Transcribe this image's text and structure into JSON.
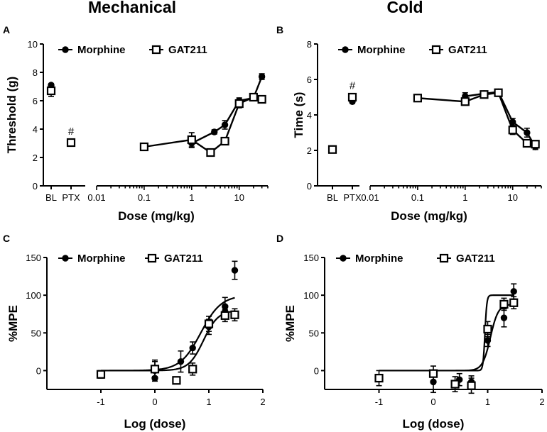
{
  "figure": {
    "col_titles": [
      "Mechanical",
      "Cold"
    ],
    "panel_letters": [
      "A",
      "B",
      "C",
      "D"
    ]
  },
  "chart_data": [
    {
      "panel": "A",
      "type": "line",
      "ylabel": "Threshold (g)",
      "xlabel": "Dose  (mg/kg)",
      "ylim": [
        0,
        10
      ],
      "yticks": [
        0,
        2,
        4,
        6,
        8,
        10
      ],
      "xscale": "log",
      "xlim": [
        0.01,
        40
      ],
      "xticks": [
        0.01,
        0.1,
        1,
        10
      ],
      "xtick_labels": [
        "0.01",
        "0.1",
        "1",
        "10"
      ],
      "categories": [
        "BL",
        "PTX"
      ],
      "annotation": {
        "text": "#",
        "series": "GAT211",
        "category": "PTX"
      },
      "legend": [
        "Morphine",
        "GAT211"
      ],
      "series": [
        {
          "name": "Morphine",
          "marker": "filled-circle",
          "baseline": [
            {
              "cat": "BL",
              "y": 7.1,
              "err": 0.1
            },
            {
              "cat": "PTX",
              "y": 3.1,
              "err": 0.1
            }
          ],
          "x": [
            1,
            3,
            5,
            10,
            20,
            30
          ],
          "y": [
            3.0,
            3.8,
            4.3,
            6.0,
            6.2,
            7.7
          ],
          "err": [
            0.3,
            0.15,
            0.3,
            0.2,
            0.2,
            0.2
          ]
        },
        {
          "name": "GAT211",
          "marker": "open-square",
          "baseline": [
            {
              "cat": "BL",
              "y": 6.7,
              "err": 0.4
            },
            {
              "cat": "PTX",
              "y": 3.05,
              "err": 0.15
            }
          ],
          "x": [
            0.1,
            1,
            2.5,
            5,
            10,
            20,
            30
          ],
          "y": [
            2.75,
            3.25,
            2.35,
            3.15,
            5.8,
            6.25,
            6.1
          ],
          "err": [
            0.1,
            0.5,
            0.1,
            0.1,
            0.3,
            0.2,
            0.15
          ]
        }
      ]
    },
    {
      "panel": "B",
      "type": "line",
      "ylabel": "Time  (s)",
      "xlabel": "Dose  (mg/kg)",
      "ylim": [
        0,
        8
      ],
      "yticks": [
        0,
        2,
        4,
        6,
        8
      ],
      "xscale": "log",
      "xlim": [
        0.01,
        40
      ],
      "xticks": [
        0.01,
        0.1,
        1,
        10
      ],
      "xtick_labels": [
        "0.01",
        "0.1",
        "1",
        "10"
      ],
      "categories": [
        "BL",
        "PTX"
      ],
      "annotation": {
        "text": "#",
        "series": "GAT211",
        "category": "PTX"
      },
      "legend": [
        "Morphine",
        "GAT211"
      ],
      "series": [
        {
          "name": "Morphine",
          "marker": "filled-circle",
          "baseline": [
            {
              "cat": "BL",
              "y": 2.05,
              "err": 0.1
            },
            {
              "cat": "PTX",
              "y": 4.75,
              "err": 0.1
            }
          ],
          "x": [
            1,
            2.5,
            5,
            10,
            20,
            30
          ],
          "y": [
            5.05,
            5.2,
            5.3,
            3.6,
            3.0,
            2.2
          ],
          "err": [
            0.2,
            0.15,
            0.15,
            0.2,
            0.25,
            0.15
          ]
        },
        {
          "name": "GAT211",
          "marker": "open-square",
          "baseline": [
            {
              "cat": "BL",
              "y": 2.05,
              "err": 0.1
            },
            {
              "cat": "PTX",
              "y": 5.0,
              "err": 0.15
            }
          ],
          "x": [
            0.1,
            1,
            2.5,
            5,
            10,
            20,
            30
          ],
          "y": [
            4.95,
            4.75,
            5.15,
            5.25,
            3.15,
            2.4,
            2.35
          ],
          "err": [
            0.15,
            0.2,
            0.15,
            0.15,
            0.25,
            0.2,
            0.15
          ]
        }
      ]
    },
    {
      "panel": "C",
      "type": "scatter",
      "ylabel": "%MPE",
      "xlabel": "Log  (dose)",
      "xlim": [
        -2,
        2
      ],
      "ylim": [
        -25,
        150
      ],
      "xticks": [
        -1,
        0,
        1,
        2
      ],
      "yticks": [
        0,
        50,
        100,
        150
      ],
      "legend": [
        "Morphine",
        "GAT211"
      ],
      "series": [
        {
          "name": "Morphine",
          "marker": "filled-circle",
          "x": [
            -1,
            0,
            0,
            0.48,
            0.7,
            1.0,
            1.3,
            1.3,
            1.48
          ],
          "y": [
            -5,
            0,
            -10,
            12,
            30,
            58,
            85,
            78,
            133
          ],
          "err": [
            5,
            14,
            0,
            14,
            8,
            10,
            12,
            8,
            12
          ],
          "fit": {
            "top": 100,
            "bottom": 0,
            "ec50_log": 0.85,
            "hill": 2.3
          }
        },
        {
          "name": "GAT211",
          "marker": "open-square",
          "x": [
            -1,
            0,
            0.4,
            0.7,
            1.0,
            1.3,
            1.48
          ],
          "y": [
            -5,
            2,
            -13,
            2,
            62,
            73,
            74
          ],
          "err": [
            4,
            10,
            4,
            8,
            10,
            8,
            8
          ],
          "fit": {
            "top": 80,
            "bottom": 0,
            "ec50_log": 0.9,
            "hill": 3.2
          }
        }
      ]
    },
    {
      "panel": "D",
      "type": "scatter",
      "ylabel": "%MPE",
      "xlabel": "Log  (dose)",
      "xlim": [
        -2,
        2
      ],
      "ylim": [
        -25,
        150
      ],
      "xticks": [
        -1,
        0,
        1,
        2
      ],
      "yticks": [
        0,
        50,
        100,
        150
      ],
      "legend": [
        "Morphine",
        "GAT211"
      ],
      "series": [
        {
          "name": "Morphine",
          "marker": "filled-circle",
          "x": [
            0,
            0.48,
            0.7,
            1.0,
            1.3,
            1.48
          ],
          "y": [
            -15,
            -12,
            -15,
            40,
            70,
            105
          ],
          "err": [
            14,
            8,
            8,
            8,
            12,
            10
          ],
          "fit": {
            "top": 100,
            "bottom": 0,
            "ec50_log": 0.95,
            "hill": 25
          }
        },
        {
          "name": "GAT211",
          "marker": "open-square",
          "x": [
            -1,
            0,
            0.4,
            0.7,
            1.0,
            1.3,
            1.48
          ],
          "y": [
            -10,
            -4,
            -18,
            -20,
            55,
            88,
            90
          ],
          "err": [
            10,
            10,
            10,
            10,
            10,
            8,
            8
          ],
          "fit": {
            "top": 88,
            "bottom": 0,
            "ec50_log": 1.05,
            "hill": 6
          }
        }
      ]
    }
  ]
}
